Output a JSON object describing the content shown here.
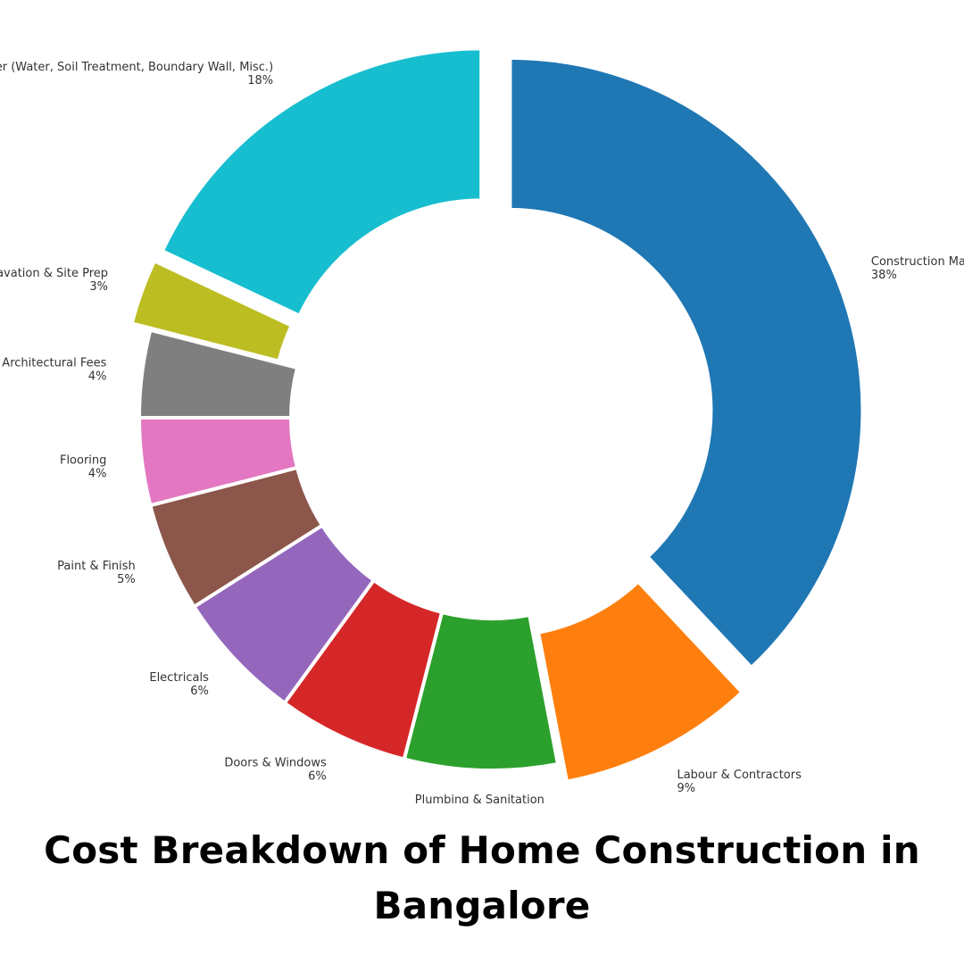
{
  "chart_data": {
    "type": "pie",
    "style": "donut",
    "title_line1": "Cost Breakdown of Home Construction in",
    "title_line2": "Bangalore",
    "slices": [
      {
        "label": "Construction Materials",
        "value": 38,
        "pct_label": "38%",
        "color": "#1f77b4",
        "exploded": true
      },
      {
        "label": "Labour & Contractors",
        "value": 9,
        "pct_label": "9%",
        "color": "#ff7f0e",
        "exploded": true
      },
      {
        "label": "Plumbing & Sanitation",
        "value": 7,
        "pct_label": "7%",
        "color": "#2ca02c",
        "exploded": false
      },
      {
        "label": "Doors & Windows",
        "value": 6,
        "pct_label": "6%",
        "color": "#d62728",
        "exploded": false
      },
      {
        "label": "Electricals",
        "value": 6,
        "pct_label": "6%",
        "color": "#9467bd",
        "exploded": false
      },
      {
        "label": "Paint & Finish",
        "value": 5,
        "pct_label": "5%",
        "color": "#8c564b",
        "exploded": false
      },
      {
        "label": "Flooring",
        "value": 4,
        "pct_label": "4%",
        "color": "#e377c2",
        "exploded": false
      },
      {
        "label": "Architectural Fees",
        "value": 4,
        "pct_label": "4%",
        "color": "#7f7f7f",
        "exploded": false
      },
      {
        "label": "Excavation & Site Prep",
        "value": 3,
        "pct_label": "3%",
        "color": "#bcbd22",
        "exploded": true
      },
      {
        "label": "Other (Water, Soil Treatment, Boundary Wall, Misc.)",
        "value": 18,
        "pct_label": "18%",
        "color": "#17becf",
        "exploded": true
      }
    ]
  }
}
